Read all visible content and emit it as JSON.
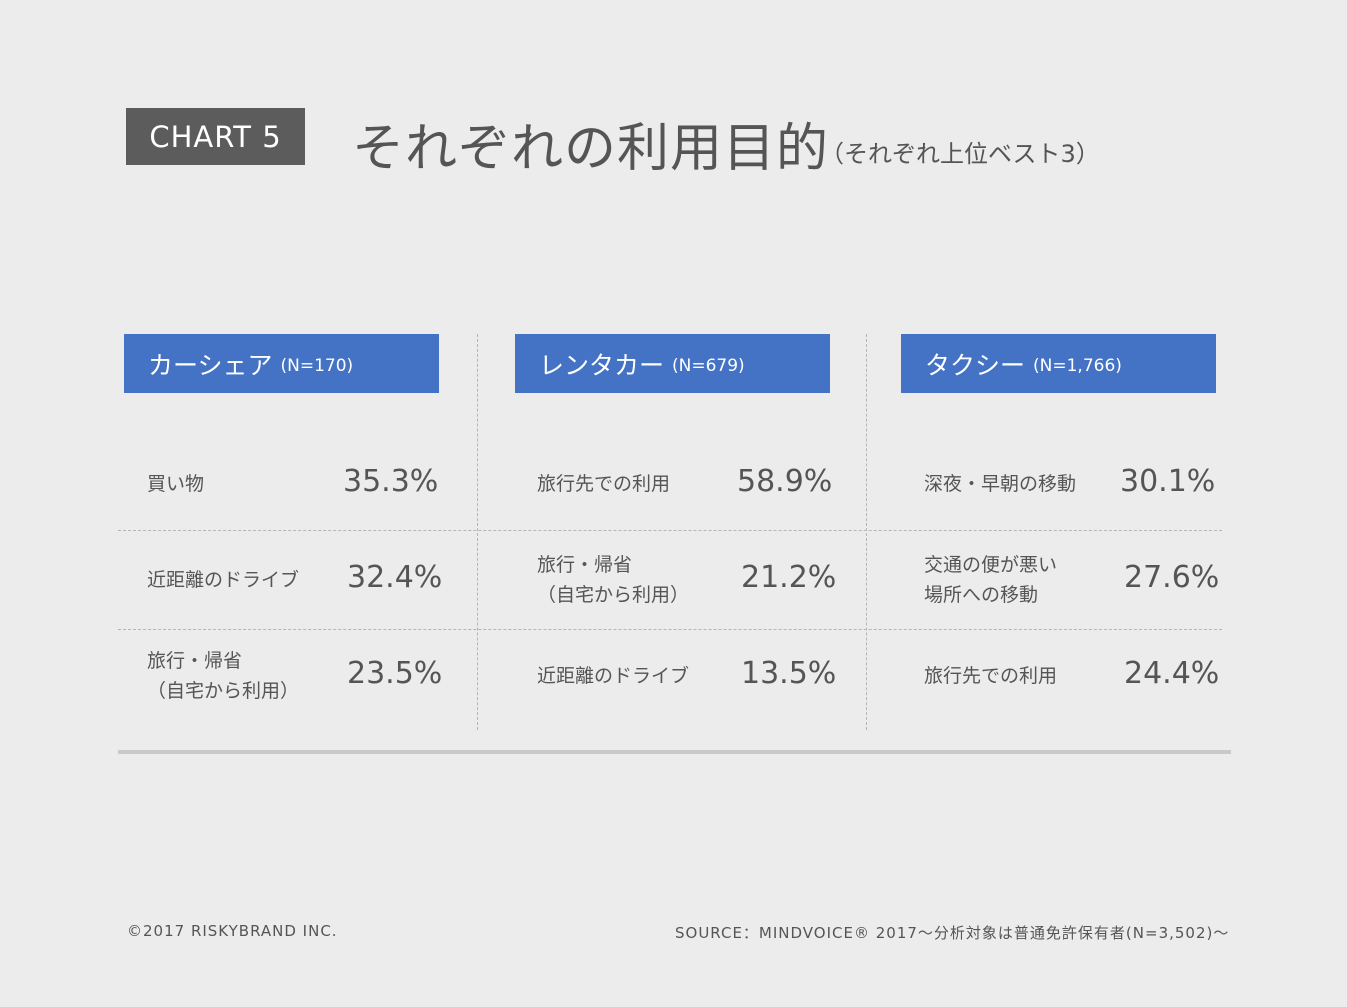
{
  "header": {
    "badge": "CHART 5",
    "title": "それぞれの利用目的",
    "subtitle": "（それぞれ上位ベスト3）"
  },
  "chart_data": {
    "type": "table",
    "unit": "%",
    "columns": [
      {
        "name": "カーシェア",
        "n": "(N=170)",
        "rows": [
          {
            "label": [
              "買い物"
            ],
            "value": 35.3,
            "display": "35.3%"
          },
          {
            "label": [
              "近距離のドライブ"
            ],
            "value": 32.4,
            "display": "32.4%"
          },
          {
            "label": [
              "旅行・帰省",
              "（自宅から利用）"
            ],
            "value": 23.5,
            "display": "23.5%"
          }
        ]
      },
      {
        "name": "レンタカー",
        "n": "(N=679)",
        "rows": [
          {
            "label": [
              "旅行先での利用"
            ],
            "value": 58.9,
            "display": "58.9%"
          },
          {
            "label": [
              "旅行・帰省",
              "（自宅から利用）"
            ],
            "value": 21.2,
            "display": "21.2%"
          },
          {
            "label": [
              "近距離のドライブ"
            ],
            "value": 13.5,
            "display": "13.5%"
          }
        ]
      },
      {
        "name": "タクシー",
        "n": "(N=1,766)",
        "rows": [
          {
            "label": [
              "深夜・早朝の移動"
            ],
            "value": 30.1,
            "display": "30.1%"
          },
          {
            "label": [
              "交通の便が悪い",
              "場所への移動"
            ],
            "value": 27.6,
            "display": "27.6%"
          },
          {
            "label": [
              "旅行先での利用"
            ],
            "value": 24.4,
            "display": "24.4%"
          }
        ]
      }
    ]
  },
  "footer": {
    "copyright": "©2017 RISKYBRAND INC.",
    "source": "SOURCE：MINDVOICE® 2017〜分析対象は普通免許保有者(N=3,502)〜"
  }
}
